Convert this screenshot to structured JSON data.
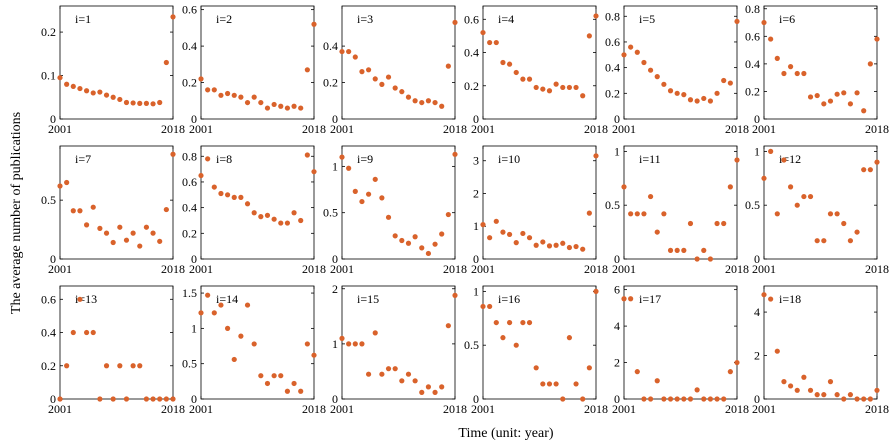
{
  "figure": {
    "ylabel": "The average number of publications",
    "xlabel": "Time (unit: year)",
    "marker_color": "#D9622B"
  },
  "chart_data": [
    {
      "type": "scatter",
      "title": "i=1",
      "xlim": [
        2001,
        2018
      ],
      "ylim": [
        0,
        0.26
      ],
      "yticks": [
        0,
        0.1,
        0.2
      ],
      "ytick_labels": [
        "0",
        "0.1",
        "0.2"
      ],
      "xtick_labels": [
        "2001",
        "2018"
      ],
      "x": [
        2001,
        2002,
        2003,
        2004,
        2005,
        2006,
        2007,
        2008,
        2009,
        2010,
        2011,
        2012,
        2013,
        2014,
        2015,
        2016,
        2017,
        2018
      ],
      "y": [
        0.095,
        0.08,
        0.075,
        0.07,
        0.065,
        0.06,
        0.062,
        0.055,
        0.05,
        0.045,
        0.038,
        0.037,
        0.036,
        0.036,
        0.035,
        0.038,
        0.13,
        0.235
      ]
    },
    {
      "type": "scatter",
      "title": "i=2",
      "xlim": [
        2001,
        2018
      ],
      "ylim": [
        0,
        0.62
      ],
      "yticks": [
        0,
        0.2,
        0.4,
        0.6
      ],
      "ytick_labels": [
        "0",
        "0.2",
        "0.4",
        "0.6"
      ],
      "xtick_labels": [
        "2001",
        "2018"
      ],
      "x": [
        2001,
        2002,
        2003,
        2004,
        2005,
        2006,
        2007,
        2008,
        2009,
        2010,
        2011,
        2012,
        2013,
        2014,
        2015,
        2016,
        2017,
        2018
      ],
      "y": [
        0.22,
        0.16,
        0.16,
        0.13,
        0.14,
        0.13,
        0.12,
        0.09,
        0.12,
        0.09,
        0.06,
        0.08,
        0.07,
        0.06,
        0.07,
        0.06,
        0.27,
        0.52
      ]
    },
    {
      "type": "scatter",
      "title": "i=3",
      "xlim": [
        2001,
        2018
      ],
      "ylim": [
        0,
        0.62
      ],
      "yticks": [
        0,
        0.2,
        0.4
      ],
      "ytick_labels": [
        "0",
        "0.2",
        "0.4"
      ],
      "xtick_labels": [
        "2001",
        "2018"
      ],
      "x": [
        2001,
        2002,
        2003,
        2004,
        2005,
        2006,
        2007,
        2008,
        2009,
        2010,
        2011,
        2012,
        2013,
        2014,
        2015,
        2016,
        2017,
        2018
      ],
      "y": [
        0.37,
        0.37,
        0.34,
        0.26,
        0.27,
        0.22,
        0.19,
        0.23,
        0.17,
        0.15,
        0.12,
        0.1,
        0.09,
        0.1,
        0.09,
        0.07,
        0.29,
        0.53
      ]
    },
    {
      "type": "scatter",
      "title": "i=4",
      "xlim": [
        2001,
        2018
      ],
      "ylim": [
        0,
        0.68
      ],
      "yticks": [
        0,
        0.2,
        0.4,
        0.6
      ],
      "ytick_labels": [
        "0",
        "0.2",
        "0.4",
        "0.6"
      ],
      "xtick_labels": [
        "2001",
        "2018"
      ],
      "x": [
        2001,
        2002,
        2003,
        2004,
        2005,
        2006,
        2007,
        2008,
        2009,
        2010,
        2011,
        2012,
        2013,
        2014,
        2015,
        2016,
        2017,
        2018
      ],
      "y": [
        0.52,
        0.46,
        0.46,
        0.34,
        0.33,
        0.28,
        0.24,
        0.24,
        0.19,
        0.18,
        0.17,
        0.21,
        0.19,
        0.19,
        0.19,
        0.14,
        0.5,
        0.62
      ]
    },
    {
      "type": "scatter",
      "title": "i=5",
      "xlim": [
        2001,
        2018
      ],
      "ylim": [
        0,
        0.88
      ],
      "yticks": [
        0,
        0.2,
        0.4,
        0.6,
        0.8
      ],
      "ytick_labels": [
        "0",
        "0.2",
        "0.4",
        "0.6",
        "0.8"
      ],
      "xtick_labels": [
        "2001",
        "2018"
      ],
      "x": [
        2001,
        2002,
        2003,
        2004,
        2005,
        2006,
        2007,
        2008,
        2009,
        2010,
        2011,
        2012,
        2013,
        2014,
        2015,
        2016,
        2017,
        2018
      ],
      "y": [
        0.5,
        0.56,
        0.52,
        0.44,
        0.38,
        0.33,
        0.27,
        0.22,
        0.2,
        0.19,
        0.15,
        0.14,
        0.16,
        0.14,
        0.2,
        0.3,
        0.28,
        0.76
      ]
    },
    {
      "type": "scatter",
      "title": "i=6",
      "xlim": [
        2001,
        2018
      ],
      "ylim": [
        0,
        0.82
      ],
      "yticks": [
        0,
        0.2,
        0.4,
        0.6,
        0.8
      ],
      "ytick_labels": [
        "0",
        "0.2",
        "0.4",
        "0.6",
        "0.8"
      ],
      "xtick_labels": [
        "2001",
        "2018"
      ],
      "x": [
        2001,
        2002,
        2003,
        2004,
        2005,
        2006,
        2007,
        2008,
        2009,
        2010,
        2011,
        2012,
        2013,
        2014,
        2015,
        2016,
        2017,
        2018
      ],
      "y": [
        0.7,
        0.58,
        0.44,
        0.33,
        0.38,
        0.33,
        0.33,
        0.16,
        0.17,
        0.11,
        0.13,
        0.18,
        0.19,
        0.11,
        0.19,
        0.06,
        0.4,
        0.58
      ]
    },
    {
      "type": "scatter",
      "title": "i=7",
      "xlim": [
        2001,
        2018
      ],
      "ylim": [
        0,
        0.96
      ],
      "yticks": [
        0,
        0.5
      ],
      "ytick_labels": [
        "0",
        "0.5"
      ],
      "xtick_labels": [
        "2001",
        "2018"
      ],
      "x": [
        2001,
        2002,
        2003,
        2004,
        2005,
        2006,
        2007,
        2008,
        2009,
        2010,
        2011,
        2012,
        2013,
        2014,
        2015,
        2016,
        2017,
        2018
      ],
      "y": [
        0.62,
        0.65,
        0.41,
        0.41,
        0.29,
        0.44,
        0.26,
        0.22,
        0.14,
        0.27,
        0.16,
        0.22,
        0.11,
        0.27,
        0.22,
        0.15,
        0.42,
        0.89
      ]
    },
    {
      "type": "scatter",
      "title": "i=8",
      "xlim": [
        2001,
        2018
      ],
      "ylim": [
        0,
        0.88
      ],
      "yticks": [
        0,
        0.2,
        0.4,
        0.6,
        0.8
      ],
      "ytick_labels": [
        "0",
        "0.2",
        "0.4",
        "0.6",
        "0.8"
      ],
      "xtick_labels": [
        "2001",
        "2018"
      ],
      "x": [
        2001,
        2002,
        2003,
        2004,
        2005,
        2006,
        2007,
        2008,
        2009,
        2010,
        2011,
        2012,
        2013,
        2014,
        2015,
        2016,
        2017,
        2018
      ],
      "y": [
        0.65,
        0.78,
        0.56,
        0.51,
        0.5,
        0.48,
        0.48,
        0.43,
        0.36,
        0.33,
        0.34,
        0.31,
        0.28,
        0.28,
        0.36,
        0.3,
        0.81,
        0.68
      ]
    },
    {
      "type": "scatter",
      "title": "i=9",
      "xlim": [
        2001,
        2018
      ],
      "ylim": [
        0,
        1.22
      ],
      "yticks": [
        0,
        0.5,
        1
      ],
      "ytick_labels": [
        "0",
        "0.5",
        "1"
      ],
      "xtick_labels": [
        "2001",
        "2018"
      ],
      "x": [
        2001,
        2002,
        2003,
        2004,
        2005,
        2006,
        2007,
        2008,
        2009,
        2010,
        2011,
        2012,
        2013,
        2014,
        2015,
        2016,
        2017,
        2018
      ],
      "y": [
        1.1,
        0.98,
        0.73,
        0.62,
        0.7,
        0.86,
        0.66,
        0.45,
        0.25,
        0.2,
        0.17,
        0.24,
        0.12,
        0.06,
        0.16,
        0.27,
        0.48,
        1.13
      ]
    },
    {
      "type": "scatter",
      "title": "i=10",
      "xlim": [
        2001,
        2018
      ],
      "ylim": [
        0,
        3.45
      ],
      "yticks": [
        0,
        1,
        2,
        3
      ],
      "ytick_labels": [
        "0",
        "1",
        "2",
        "3"
      ],
      "xtick_labels": [
        "2001",
        "2018"
      ],
      "x": [
        2001,
        2002,
        2003,
        2004,
        2005,
        2006,
        2007,
        2008,
        2009,
        2010,
        2011,
        2012,
        2013,
        2014,
        2015,
        2016,
        2017,
        2018
      ],
      "y": [
        1.05,
        0.65,
        1.15,
        0.82,
        0.75,
        0.5,
        0.78,
        0.65,
        0.42,
        0.52,
        0.4,
        0.42,
        0.48,
        0.35,
        0.38,
        0.3,
        1.4,
        3.15
      ]
    },
    {
      "type": "scatter",
      "title": "i=11",
      "xlim": [
        2001,
        2018
      ],
      "ylim": [
        0,
        1.05
      ],
      "yticks": [
        0,
        0.5,
        1
      ],
      "ytick_labels": [
        "0",
        "0.5",
        "1"
      ],
      "xtick_labels": [
        "2001",
        "2018"
      ],
      "x": [
        2001,
        2002,
        2003,
        2004,
        2005,
        2006,
        2007,
        2008,
        2009,
        2010,
        2011,
        2012,
        2013,
        2014,
        2015,
        2016,
        2017,
        2018
      ],
      "y": [
        0.67,
        0.42,
        0.42,
        0.42,
        0.58,
        0.25,
        0.42,
        0.08,
        0.08,
        0.08,
        0.33,
        0.0,
        0.08,
        0.0,
        0.33,
        0.33,
        0.67,
        0.92
      ]
    },
    {
      "type": "scatter",
      "title": "i=12",
      "xlim": [
        2001,
        2018
      ],
      "ylim": [
        0,
        1.05
      ],
      "yticks": [
        0,
        0.5,
        1
      ],
      "ytick_labels": [
        "0",
        "0.5",
        "1"
      ],
      "xtick_labels": [
        "2001",
        "2018"
      ],
      "x": [
        2001,
        2002,
        2003,
        2004,
        2005,
        2006,
        2007,
        2008,
        2009,
        2010,
        2011,
        2012,
        2013,
        2014,
        2015,
        2016,
        2017,
        2018
      ],
      "y": [
        0.75,
        1.0,
        0.42,
        0.92,
        0.67,
        0.5,
        0.58,
        0.58,
        0.17,
        0.17,
        0.42,
        0.42,
        0.33,
        0.17,
        0.25,
        0.83,
        0.83,
        0.9
      ]
    },
    {
      "type": "scatter",
      "title": "i=13",
      "xlim": [
        2001,
        2018
      ],
      "ylim": [
        0,
        0.68
      ],
      "yticks": [
        0,
        0.2,
        0.4,
        0.6
      ],
      "ytick_labels": [
        "0",
        "0.2",
        "0.4",
        "0.6"
      ],
      "xtick_labels": [
        "2001",
        "2018"
      ],
      "x": [
        2001,
        2002,
        2003,
        2004,
        2005,
        2006,
        2007,
        2008,
        2009,
        2010,
        2011,
        2012,
        2013,
        2014,
        2015,
        2016,
        2017,
        2018
      ],
      "y": [
        0.0,
        0.2,
        0.4,
        0.6,
        0.4,
        0.4,
        0.0,
        0.2,
        0.0,
        0.2,
        0.0,
        0.2,
        0.2,
        0.0,
        0.0,
        0.0,
        0.0,
        0.0
      ]
    },
    {
      "type": "scatter",
      "title": "i=14",
      "xlim": [
        2001,
        2018
      ],
      "ylim": [
        0,
        1.6
      ],
      "yticks": [
        0,
        0.5,
        1,
        1.5
      ],
      "ytick_labels": [
        "0",
        "0.5",
        "1",
        "1.5"
      ],
      "xtick_labels": [
        "2001",
        "2018"
      ],
      "x": [
        2001,
        2002,
        2003,
        2004,
        2005,
        2006,
        2007,
        2008,
        2009,
        2010,
        2011,
        2012,
        2013,
        2014,
        2015,
        2016,
        2017,
        2018
      ],
      "y": [
        1.22,
        1.47,
        1.22,
        1.33,
        1.0,
        0.56,
        0.89,
        1.33,
        0.78,
        0.33,
        0.22,
        0.33,
        0.33,
        0.11,
        0.22,
        0.11,
        0.78,
        0.62
      ]
    },
    {
      "type": "scatter",
      "title": "i=15",
      "xlim": [
        2001,
        2018
      ],
      "ylim": [
        0,
        2.05
      ],
      "yticks": [
        0,
        1,
        2
      ],
      "ytick_labels": [
        "0",
        "1",
        "2"
      ],
      "xtick_labels": [
        "2001",
        "2018"
      ],
      "x": [
        2001,
        2002,
        2003,
        2004,
        2005,
        2006,
        2007,
        2008,
        2009,
        2010,
        2011,
        2012,
        2013,
        2014,
        2015,
        2016,
        2017,
        2018
      ],
      "y": [
        1.1,
        1.0,
        1.0,
        1.0,
        0.45,
        1.2,
        0.45,
        0.55,
        0.55,
        0.33,
        0.45,
        0.33,
        0.12,
        0.22,
        0.12,
        0.22,
        1.33,
        1.88
      ]
    },
    {
      "type": "scatter",
      "title": "i=16",
      "xlim": [
        2001,
        2018
      ],
      "ylim": [
        0,
        1.05
      ],
      "yticks": [
        0,
        0.5,
        1
      ],
      "ytick_labels": [
        "0",
        "0.5",
        "1"
      ],
      "xtick_labels": [
        "2001",
        "2018"
      ],
      "x": [
        2001,
        2002,
        2003,
        2004,
        2005,
        2006,
        2007,
        2008,
        2009,
        2010,
        2011,
        2012,
        2013,
        2014,
        2015,
        2016,
        2017,
        2018
      ],
      "y": [
        0.86,
        0.86,
        0.71,
        0.57,
        0.71,
        0.5,
        0.71,
        0.71,
        0.29,
        0.14,
        0.14,
        0.14,
        0.0,
        0.57,
        0.14,
        0.0,
        0.29,
        1.0
      ]
    },
    {
      "type": "scatter",
      "title": "i=17",
      "xlim": [
        2001,
        2018
      ],
      "ylim": [
        0,
        6.2
      ],
      "yticks": [
        0,
        2,
        4,
        6
      ],
      "ytick_labels": [
        "0",
        "2",
        "4",
        "6"
      ],
      "xtick_labels": [
        "2001",
        "2018"
      ],
      "x": [
        2001,
        2002,
        2003,
        2004,
        2005,
        2006,
        2007,
        2008,
        2009,
        2010,
        2011,
        2012,
        2013,
        2014,
        2015,
        2016,
        2017,
        2018
      ],
      "y": [
        5.5,
        5.5,
        1.5,
        0.0,
        0.0,
        1.0,
        0.0,
        0.0,
        0.0,
        0.0,
        0.0,
        0.5,
        0.0,
        0.0,
        0.0,
        0.0,
        1.5,
        2.0
      ]
    },
    {
      "type": "scatter",
      "title": "i=18",
      "xlim": [
        2001,
        2018
      ],
      "ylim": [
        0,
        5.2
      ],
      "yticks": [
        0,
        2,
        4
      ],
      "ytick_labels": [
        "0",
        "2",
        "4"
      ],
      "xtick_labels": [
        "2001",
        "2018"
      ],
      "x": [
        2001,
        2002,
        2003,
        2004,
        2005,
        2006,
        2007,
        2008,
        2009,
        2010,
        2011,
        2012,
        2013,
        2014,
        2015,
        2016,
        2017,
        2018
      ],
      "y": [
        4.8,
        4.6,
        2.2,
        0.8,
        0.6,
        0.4,
        1.0,
        0.4,
        0.2,
        0.2,
        0.8,
        0.2,
        0.0,
        0.2,
        0.0,
        0.0,
        0.0,
        0.4
      ]
    }
  ]
}
